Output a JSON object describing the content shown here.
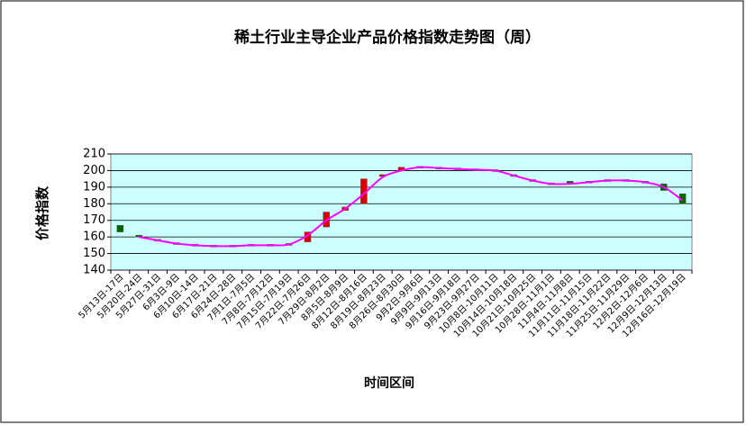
{
  "chart_data": {
    "type": "candlestick",
    "title": "稀土行业主导企业产品价格指数走势图（周）",
    "y_label": "价格指数",
    "x_label": "时间区间",
    "categories": [
      "5月13日-17日",
      "5月20日-24日",
      "5月27日-31日",
      "6月3日-9日",
      "6月10日-14日",
      "6月17日-21日",
      "6月24日-28日",
      "7月1日-7月5日",
      "7月8日-7月12日",
      "7月15日-7月19日",
      "7月22日-7月26日",
      "7月29日-8月2日",
      "8月5日-8月9日",
      "8月12日-8月16日",
      "8月19日-8月23日",
      "8月26日-8月30日",
      "9月2日-9月6日",
      "9月9日-9月13日",
      "9月16日-9月18日",
      "9月23日-9月27日",
      "10月8日-10月11日",
      "10月14日-10月18日",
      "10月21日-10月25日",
      "10月28日-11月1日",
      "11月4日-11月8日",
      "11月11日-11月15日",
      "11月18日-11月22日",
      "11月25日-11月29日",
      "12月2日-12月6日",
      "12月9日-12月13日",
      "12月16日-12月19日"
    ],
    "open": [
      167,
      160.5,
      158,
      156,
      155,
      154.5,
      154.5,
      155,
      155,
      155.5,
      157,
      166,
      176,
      180,
      196,
      200,
      202,
      201.5,
      201,
      200.5,
      200,
      197,
      194,
      192,
      193,
      193,
      194,
      194,
      193,
      192,
      186
    ],
    "close": [
      163,
      159.5,
      158,
      156,
      155,
      154.5,
      154.5,
      155,
      155,
      155.5,
      163,
      175,
      178,
      195,
      197,
      202,
      202,
      201.5,
      201,
      200.5,
      200,
      196,
      193,
      192,
      192,
      192,
      194,
      194,
      193,
      188,
      180
    ],
    "line": [
      null,
      160,
      158,
      156,
      155,
      154.5,
      154.5,
      155,
      155,
      155.5,
      161,
      170,
      177,
      186,
      196,
      200,
      202,
      201.5,
      201,
      200.5,
      200,
      197,
      194,
      192,
      192,
      193,
      194,
      194,
      193,
      190,
      182
    ],
    "up_color": "#dd0000",
    "down_color": "#006600",
    "line_color": "#ff00ff",
    "plot_bg": "#ccffff",
    "ylim": [
      140,
      210
    ],
    "yticks": [
      140,
      150,
      160,
      170,
      180,
      190,
      200,
      210
    ],
    "grid": true
  }
}
